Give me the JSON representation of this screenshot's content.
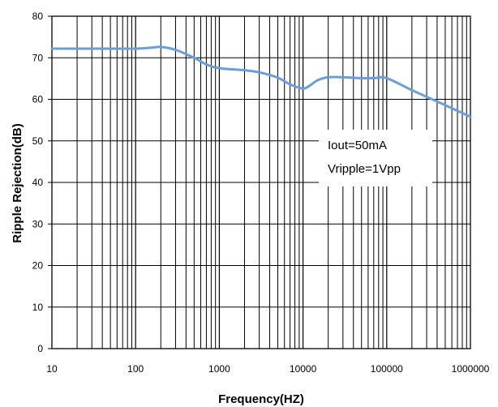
{
  "chart_data": {
    "type": "line",
    "title": "",
    "xlabel": "Frequency(HZ)",
    "ylabel": "Ripple Rejection(dB)",
    "x_scale": "log",
    "xlim": [
      10,
      1000000
    ],
    "ylim": [
      0,
      80
    ],
    "x_ticks": [
      "10",
      "100",
      "1000",
      "10000",
      "100000",
      "1000000"
    ],
    "y_ticks": [
      "0",
      "10",
      "20",
      "30",
      "40",
      "50",
      "60",
      "70",
      "80"
    ],
    "grid": true,
    "line_color": "#6a9ed8",
    "series": [
      {
        "name": "",
        "x": [
          10,
          20,
          50,
          100,
          150,
          200,
          300,
          500,
          700,
          1000,
          2000,
          3000,
          5000,
          7000,
          10000,
          12000,
          15000,
          20000,
          30000,
          50000,
          70000,
          100000,
          200000,
          500000,
          1000000
        ],
        "y": [
          72.2,
          72.2,
          72.2,
          72.2,
          72.4,
          72.6,
          71.9,
          70.0,
          68.4,
          67.5,
          67.0,
          66.5,
          65.2,
          63.6,
          62.6,
          63.3,
          64.6,
          65.3,
          65.3,
          65.1,
          65.1,
          65.1,
          62.2,
          58.6,
          55.8
        ]
      }
    ],
    "annotations": [
      "Iout=50mA",
      "Vripple=1Vpp"
    ]
  }
}
